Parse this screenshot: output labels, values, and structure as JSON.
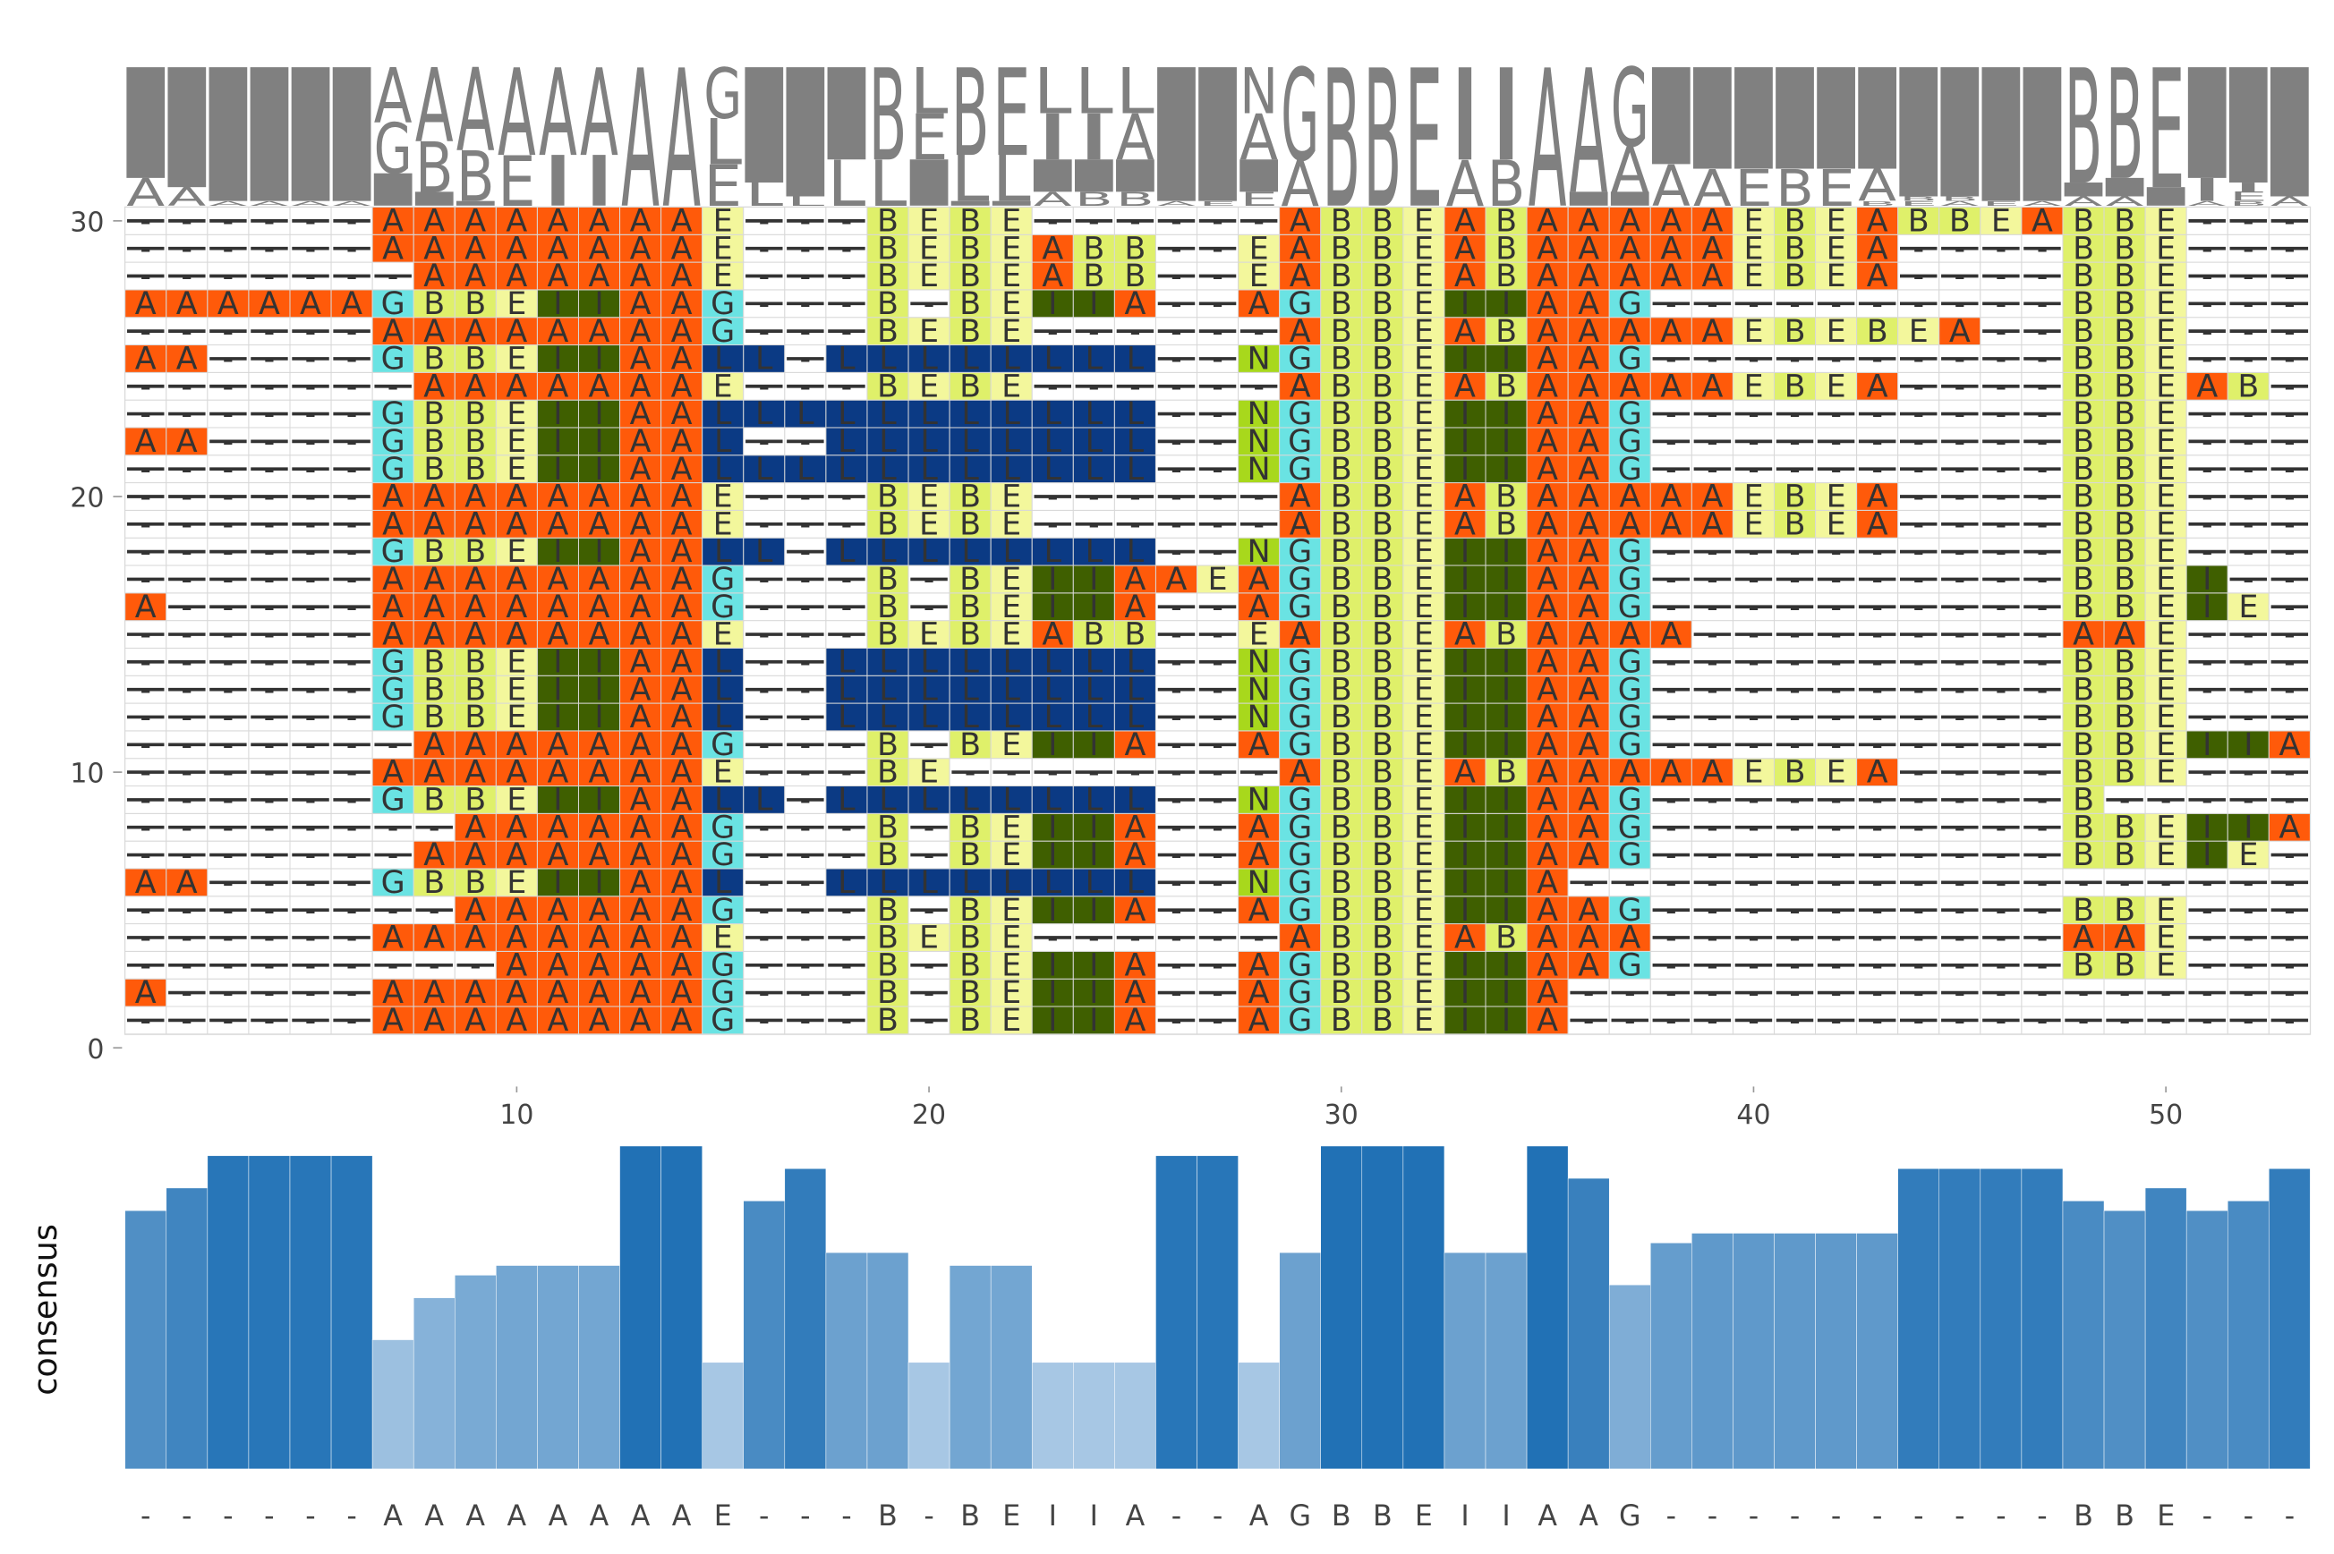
{
  "alignment": {
    "rows": [
      "------AAAAAAAAG---B-BEIIA--AGBBEIIA------------------",
      "A-----AAAAAAAAG---B-BEIIA--AGBBEIIA------------------",
      "---------AAAAAG---B-BEIIA--AGBBEIIAAG----------BBE---",
      "------AAAAAAAAE---BEBE------ABBEABAAA----------AAE---",
      "--------AAAAAAG---B-BEIIA--AGBBEIIAAG----------BBE---",
      "AA----GBBEIIAAL--LLLLLLLL--NGBBEIIA------------------",
      "-------AAAAAAAG---B-BEIIA--AGBBEIIAAG----------BBEIE-",
      "--------AAAAAAG---B-BEIIA--AGBBEIIAAG----------BBEIIA",
      "------GBBEIIAALL-LLLLLLLL--NGBBEIIAAG----------B-----",
      "------AAAAAAAAE---BE--------ABBEABAAAAAEBEA----BBE---",
      "-------AAAAAAAG---B-BEIIA--AGBBEIIAAG----------BBEIIA",
      "------GBBEIIAAL--LLLLLLLL--NGBBEIIAAG----------BBE---",
      "------GBBEIIAAL--LLLLLLLL--NGBBEIIAAG----------BBE---",
      "------GBBEIIAAL--LLLLLLLL--NGBBEIIAAG----------BBE---",
      "------AAAAAAAAE---BEBEABB--EABBEABAAAA---------AAE---",
      "A-----AAAAAAAAG---B-BEIIA--AGBBEIIAAG----------BBEIE-",
      "------AAAAAAAAG---B-BEIIAAEAGBBEIIAAG----------BBEI--",
      "------GBBEIIAALL-LLLLLLLL--NGBBEIIAAG----------BBE---",
      "------AAAAAAAAE---BEBE------ABBEABAAAAAEBEA----BBE---",
      "------AAAAAAAAE---BEBE------ABBEABAAAAAEBEA----BBE---",
      "------GBBEIIAALLLLLLLLLLL--NGBBEIIAAG----------BBE---",
      "AA----GBBEIIAAL--LLLLLLLL--NGBBEIIAAG----------BBE---",
      "------GBBEIIAALLLLLLLLLLL--NGBBEIIAAG----------BBE---",
      "-------AAAAAAAE---BEBE------ABBEABAAAAAEBEA----BBEAB-",
      "AA----GBBEIIAALL-LLLLLLLL--NGBBEIIAAG----------BBE---",
      "------AAAAAAAAG---BEBE------ABBEABAAAAAEBEBEA--BBE---",
      "AAAAAAGBBEIIAAG---B-BEIIA--AGBBEIIAAG----------BBE---",
      "-------AAAAAAAE---BEBEABB--EABBEABAAAAAEBEA----BBE---",
      "------AAAAAAAAE---BEBEABB--EABBEABAAAAAEBEA----BBE---",
      "------AAAAAAAAE---BEBE------ABBEABAAAAAEBEABBEABBE---"
    ],
    "colors": {
      "A": "#ff5a0a",
      "B": "#dff06a",
      "E": "#f3f79c",
      "G": "#6ae3e3",
      "I": "#3f5f00",
      "L": "#0b3a84",
      "N": "#a8d81c"
    },
    "xlim": [
      0.5,
      53.5
    ],
    "ylim": [
      0,
      30.5
    ],
    "xticks": [
      10,
      20,
      30,
      40,
      50
    ],
    "yticks": [
      0,
      10,
      20,
      30
    ]
  },
  "consensus": {
    "ylabel": "consensus",
    "sequence": "------AAAAAAAAE---B-BEIIA--AGBBEIIAAG----------BBE---",
    "scores": [
      0.8,
      0.87,
      0.97,
      0.97,
      0.97,
      0.97,
      0.4,
      0.53,
      0.6,
      0.63,
      0.63,
      0.63,
      1.0,
      1.0,
      0.33,
      0.83,
      0.93,
      0.67,
      0.67,
      0.33,
      0.63,
      0.63,
      0.33,
      0.33,
      0.33,
      0.97,
      0.97,
      0.33,
      0.67,
      1.0,
      1.0,
      1.0,
      0.67,
      0.67,
      1.0,
      0.9,
      0.57,
      0.7,
      0.73,
      0.73,
      0.73,
      0.73,
      0.73,
      0.93,
      0.93,
      0.93,
      0.93,
      0.83,
      0.8,
      0.87,
      0.8,
      0.83,
      0.93
    ],
    "ylim": [
      0,
      1
    ],
    "color_low": "#c6dbef",
    "color_high": "#2171b5"
  }
}
